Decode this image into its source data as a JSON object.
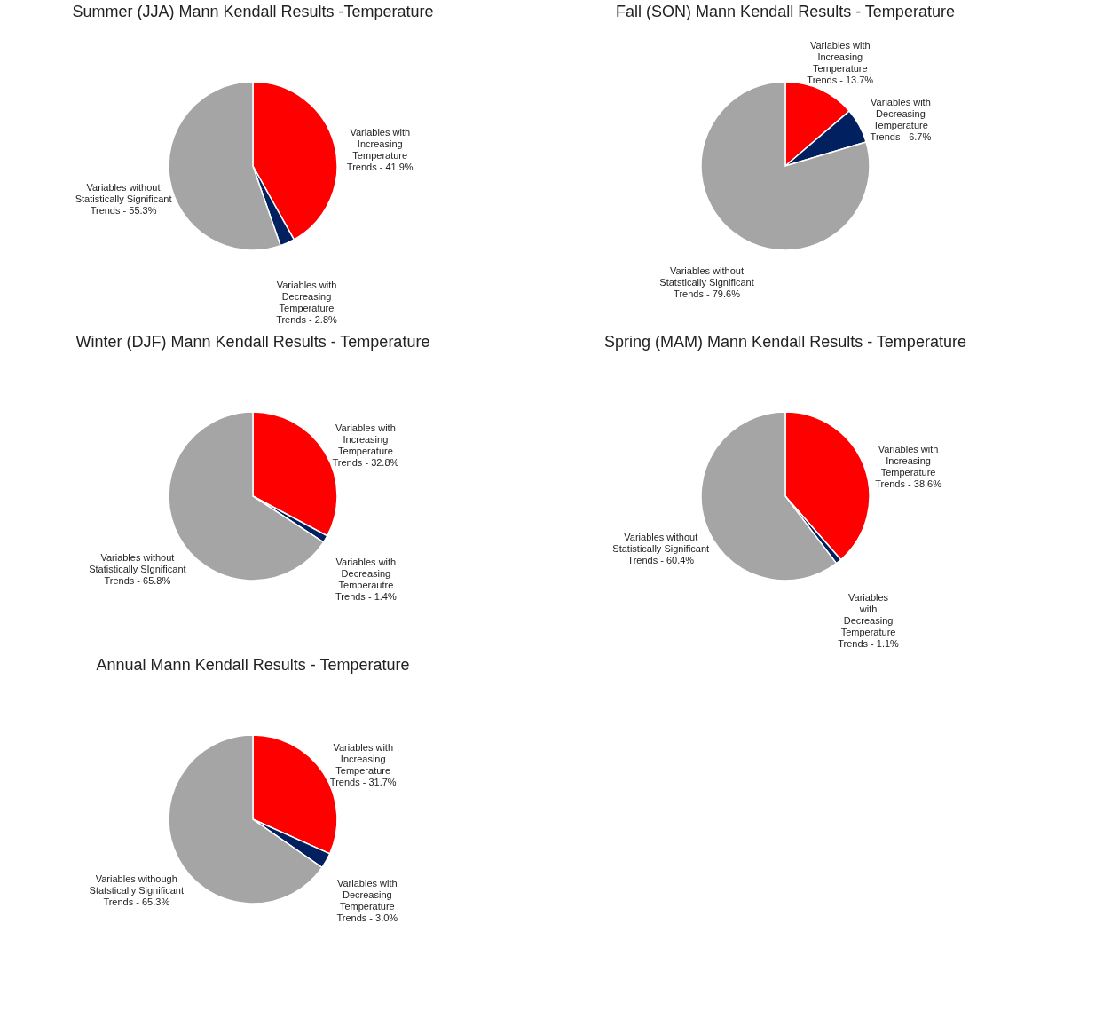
{
  "chart_data": [
    {
      "type": "pie",
      "title": "Summer (JJA) Mann Kendall Results -Temperature",
      "categories": [
        "Variables with\nIncreasing\nTemperature\nTrends - 41.9%",
        "Variables with\nDecreasing\nTemperature\nTrends - 2.8%",
        "Variables without\nStatistically Significant\nTrends - 55.3%"
      ],
      "values": [
        41.9,
        2.8,
        55.3
      ],
      "colors": [
        "#ff0000",
        "#002060",
        "#a5a5a5"
      ]
    },
    {
      "type": "pie",
      "title": "Fall (SON) Mann Kendall Results - Temperature",
      "categories": [
        "Variables with\nIncreasing\nTemperature\nTrends - 13.7%",
        "Variables with\nDecreasing\nTemperature\nTrends - 6.7%",
        "Variables without\nStatstically Significant\nTrends - 79.6%"
      ],
      "values": [
        13.7,
        6.7,
        79.6
      ],
      "colors": [
        "#ff0000",
        "#002060",
        "#a5a5a5"
      ]
    },
    {
      "type": "pie",
      "title": "Winter (DJF) Mann Kendall Results - Temperature",
      "categories": [
        "Variables with\nIncreasing\nTemperature\nTrends - 32.8%",
        "Variables with\nDecreasing\nTemperautre\nTrends - 1.4%",
        "Variables without\nStatistically SIgnificant\nTrends - 65.8%"
      ],
      "values": [
        32.8,
        1.4,
        65.8
      ],
      "colors": [
        "#ff0000",
        "#002060",
        "#a5a5a5"
      ]
    },
    {
      "type": "pie",
      "title": "Spring (MAM) Mann Kendall Results - Temperature",
      "categories": [
        "Variables with\nIncreasing\nTemperature\nTrends - 38.6%",
        "Variables\nwith\nDecreasing\nTemperature\nTrends - 1.1%",
        "Variables without\nStatistically Significant\nTrends - 60.4%"
      ],
      "values": [
        38.6,
        1.1,
        60.4
      ],
      "colors": [
        "#ff0000",
        "#002060",
        "#a5a5a5"
      ]
    },
    {
      "type": "pie",
      "title": "Annual Mann Kendall Results - Temperature",
      "categories": [
        "Variables with\nIncreasing\nTemperature\nTrends - 31.7%",
        "Variables with\nDecreasing\nTemperature\nTrends - 3.0%",
        "Variables withough\nStatstically Significant\nTrends - 65.3%"
      ],
      "values": [
        31.7,
        3.0,
        65.3
      ],
      "colors": [
        "#ff0000",
        "#002060",
        "#a5a5a5"
      ]
    }
  ]
}
